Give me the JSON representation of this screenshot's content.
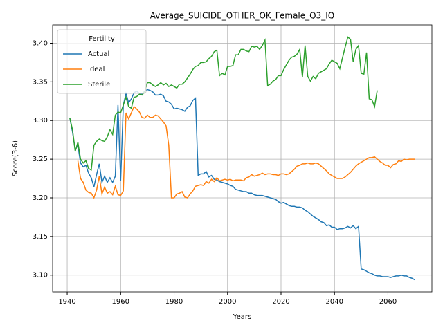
{
  "chart_data": {
    "type": "line",
    "title": "Average_SUICIDE_OTHER_OK_Female_Q3_IQ",
    "x_label": "Years",
    "y_label": "Score(3-6)",
    "legend_title": "Fertility",
    "legend": "upper left",
    "grid": true,
    "xlim": [
      1934.55,
      2076.45
    ],
    "xticks": [
      1940,
      1960,
      1980,
      2000,
      2020,
      2040,
      2060
    ],
    "ylim": [
      3.0783,
      3.4237
    ],
    "yticks": [
      {
        "value": 3.1,
        "label": "3.10"
      },
      3.15,
      {
        "value": 3.2,
        "label": "3.20"
      },
      3.25,
      {
        "value": 3.3,
        "label": "3.30"
      },
      3.35,
      {
        "value": 3.4,
        "label": "3.40"
      }
    ],
    "x": [
      1941,
      1942,
      1943,
      1944,
      1945,
      1946,
      1947,
      1948,
      1949,
      1950,
      1951,
      1952,
      1953,
      1954,
      1955,
      1956,
      1957,
      1958,
      1959,
      1960,
      1961,
      1962,
      1963,
      1964,
      1965,
      1966,
      1967,
      1968,
      1969,
      1970,
      1971,
      1972,
      1973,
      1974,
      1975,
      1976,
      1977,
      1978,
      1979,
      1980,
      1981,
      1982,
      1983,
      1984,
      1985,
      1986,
      1987,
      1988,
      1989,
      1990,
      1991,
      1992,
      1993,
      1994,
      1995,
      1996,
      1997,
      1998,
      1999,
      2000,
      2001,
      2002,
      2003,
      2004,
      2005,
      2006,
      2007,
      2008,
      2009,
      2010,
      2011,
      2012,
      2013,
      2014,
      2015,
      2016,
      2017,
      2018,
      2019,
      2020,
      2021,
      2022,
      2023,
      2024,
      2025,
      2026,
      2027,
      2028,
      2029,
      2030,
      2031,
      2032,
      2033,
      2034,
      2035,
      2036,
      2037,
      2038,
      2039,
      2040,
      2041,
      2042,
      2043,
      2044,
      2045,
      2046,
      2047,
      2048,
      2049,
      2050,
      2051,
      2052,
      2053,
      2054,
      2055,
      2056,
      2057,
      2058,
      2059,
      2060,
      2061,
      2062,
      2063,
      2064,
      2065,
      2066,
      2067,
      2068,
      2069,
      2070
    ],
    "series": [
      {
        "name": "Actual",
        "color": "#1f77b4",
        "values": [
          3.303,
          3.285,
          3.262,
          3.268,
          3.245,
          3.24,
          3.242,
          3.232,
          3.226,
          3.214,
          3.23,
          3.244,
          3.22,
          3.228,
          3.22,
          3.226,
          3.22,
          3.228,
          3.32,
          3.222,
          3.32,
          3.335,
          3.323,
          3.328,
          3.336,
          3.338,
          3.335,
          3.334,
          3.338,
          3.34,
          3.339,
          3.337,
          3.333,
          3.333,
          3.334,
          3.332,
          3.325,
          3.324,
          3.321,
          3.315,
          3.316,
          3.315,
          3.314,
          3.312,
          3.317,
          3.319,
          3.326,
          3.329,
          3.229,
          3.231,
          3.231,
          3.234,
          3.227,
          3.229,
          3.224,
          3.223,
          3.221,
          3.22,
          3.219,
          3.218,
          3.216,
          3.215,
          3.211,
          3.21,
          3.209,
          3.208,
          3.208,
          3.206,
          3.206,
          3.204,
          3.203,
          3.203,
          3.203,
          3.202,
          3.201,
          3.2,
          3.199,
          3.198,
          3.195,
          3.193,
          3.194,
          3.192,
          3.19,
          3.189,
          3.189,
          3.188,
          3.188,
          3.187,
          3.184,
          3.182,
          3.179,
          3.176,
          3.174,
          3.172,
          3.169,
          3.168,
          3.164,
          3.165,
          3.162,
          3.162,
          3.159,
          3.16,
          3.16,
          3.161,
          3.163,
          3.161,
          3.164,
          3.16,
          3.163,
          3.108,
          3.107,
          3.105,
          3.103,
          3.102,
          3.1,
          3.099,
          3.099,
          3.098,
          3.098,
          3.098,
          3.097,
          3.098,
          3.099,
          3.099,
          3.1,
          3.099,
          3.099,
          3.097,
          3.096,
          3.094
        ]
      },
      {
        "name": "Ideal",
        "color": "#ff7f0e",
        "values": [
          null,
          null,
          null,
          3.248,
          3.225,
          3.22,
          3.21,
          3.207,
          3.206,
          3.2,
          3.21,
          3.228,
          3.205,
          3.214,
          3.206,
          3.208,
          3.204,
          3.215,
          3.204,
          3.203,
          3.209,
          3.31,
          3.302,
          3.31,
          3.318,
          3.315,
          3.311,
          3.304,
          3.303,
          3.307,
          3.304,
          3.304,
          3.307,
          3.306,
          3.302,
          3.298,
          3.293,
          3.268,
          3.2,
          3.2,
          3.205,
          3.206,
          3.208,
          3.201,
          3.2,
          3.205,
          3.209,
          3.215,
          3.216,
          3.217,
          3.216,
          3.221,
          3.219,
          3.224,
          3.221,
          3.226,
          3.222,
          3.223,
          3.224,
          3.223,
          3.224,
          3.222,
          3.223,
          3.223,
          3.223,
          3.222,
          3.226,
          3.227,
          3.23,
          3.228,
          3.229,
          3.23,
          3.232,
          3.23,
          3.231,
          3.231,
          3.23,
          3.23,
          3.229,
          3.231,
          3.231,
          3.23,
          3.231,
          3.234,
          3.237,
          3.241,
          3.242,
          3.244,
          3.244,
          3.245,
          3.244,
          3.244,
          3.245,
          3.244,
          3.241,
          3.238,
          3.235,
          3.231,
          3.229,
          3.227,
          3.225,
          3.225,
          3.225,
          3.227,
          3.23,
          3.233,
          3.237,
          3.241,
          3.244,
          3.246,
          3.248,
          3.25,
          3.252,
          3.252,
          3.253,
          3.25,
          3.247,
          3.245,
          3.242,
          3.242,
          3.239,
          3.243,
          3.244,
          3.248,
          3.247,
          3.25,
          3.249,
          3.25,
          3.25,
          3.25
        ]
      },
      {
        "name": "Sterile",
        "color": "#2ca02c",
        "values": [
          3.303,
          3.288,
          3.26,
          3.272,
          3.25,
          3.245,
          3.248,
          3.238,
          3.236,
          3.268,
          3.273,
          3.276,
          3.274,
          3.273,
          3.279,
          3.288,
          3.282,
          3.307,
          3.311,
          3.31,
          3.32,
          3.33,
          3.318,
          3.316,
          3.33,
          3.331,
          3.334,
          3.333,
          3.337,
          3.349,
          3.349,
          3.346,
          3.344,
          3.346,
          3.349,
          3.346,
          3.348,
          3.344,
          3.346,
          3.344,
          3.342,
          3.347,
          3.347,
          3.35,
          3.355,
          3.36,
          3.366,
          3.37,
          3.371,
          3.375,
          3.375,
          3.376,
          3.38,
          3.383,
          3.389,
          3.391,
          3.358,
          3.361,
          3.359,
          3.37,
          3.37,
          3.371,
          3.385,
          3.385,
          3.392,
          3.392,
          3.39,
          3.389,
          3.396,
          3.395,
          3.396,
          3.392,
          3.397,
          3.404,
          3.345,
          3.347,
          3.351,
          3.353,
          3.358,
          3.358,
          3.366,
          3.372,
          3.378,
          3.382,
          3.383,
          3.386,
          3.392,
          3.356,
          3.397,
          3.357,
          3.351,
          3.357,
          3.354,
          3.361,
          3.363,
          3.365,
          3.367,
          3.373,
          3.378,
          3.376,
          3.374,
          3.367,
          3.381,
          3.395,
          3.408,
          3.405,
          3.376,
          3.392,
          3.397,
          3.361,
          3.36,
          3.388,
          3.328,
          3.327,
          3.318,
          3.339,
          null,
          null,
          null,
          null,
          null,
          null,
          null,
          null,
          null,
          null,
          null,
          null,
          null,
          null
        ]
      }
    ]
  }
}
